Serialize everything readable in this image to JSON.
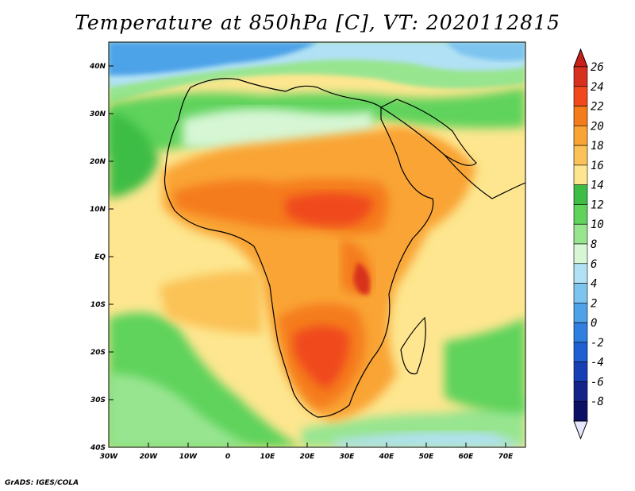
{
  "title": "Temperature at 850hPa [C], VT: 2020112815",
  "credit": "GrADS: IGES/COLA",
  "map": {
    "lon_range": [
      -30,
      75
    ],
    "lat_range": [
      -40,
      45
    ],
    "lon_ticks": [
      {
        "v": -30,
        "label": "30W"
      },
      {
        "v": -20,
        "label": "20W"
      },
      {
        "v": -10,
        "label": "10W"
      },
      {
        "v": 0,
        "label": "0"
      },
      {
        "v": 10,
        "label": "10E"
      },
      {
        "v": 20,
        "label": "20E"
      },
      {
        "v": 30,
        "label": "30E"
      },
      {
        "v": 40,
        "label": "40E"
      },
      {
        "v": 50,
        "label": "50E"
      },
      {
        "v": 60,
        "label": "60E"
      },
      {
        "v": 70,
        "label": "70E"
      }
    ],
    "lat_ticks": [
      {
        "v": 40,
        "label": "40N"
      },
      {
        "v": 30,
        "label": "30N"
      },
      {
        "v": 20,
        "label": "20N"
      },
      {
        "v": 10,
        "label": "10N"
      },
      {
        "v": 0,
        "label": "EQ"
      },
      {
        "v": -10,
        "label": "10S"
      },
      {
        "v": -20,
        "label": "20S"
      },
      {
        "v": -30,
        "label": "30S"
      },
      {
        "v": -40,
        "label": "40S"
      }
    ]
  },
  "colorbar": {
    "levels": [
      {
        "label": "26",
        "color": "#d7301f"
      },
      {
        "label": "24",
        "color": "#f04a1c"
      },
      {
        "label": "22",
        "color": "#f57c1a"
      },
      {
        "label": "20",
        "color": "#f9a434"
      },
      {
        "label": "18",
        "color": "#fbc257"
      },
      {
        "label": "16",
        "color": "#fde68f"
      },
      {
        "label": "14",
        "color": "#3dbd45"
      },
      {
        "label": "12",
        "color": "#5fd35c"
      },
      {
        "label": "10",
        "color": "#98e590"
      },
      {
        "label": "8",
        "color": "#d6f6d4"
      },
      {
        "label": "6",
        "color": "#b1e1f4"
      },
      {
        "label": "4",
        "color": "#7dc4ef"
      },
      {
        "label": "2",
        "color": "#4ea3e8"
      },
      {
        "label": "0",
        "color": "#2e7fe0"
      },
      {
        "label": "-2",
        "color": "#1f5fd3"
      },
      {
        "label": "-4",
        "color": "#173fb5"
      },
      {
        "label": "-6",
        "color": "#14238a"
      },
      {
        "label": "-8",
        "color": "#0c0f63"
      }
    ],
    "over_color": "#c81f16",
    "under_color": "#e6e6ff"
  },
  "colors": {
    "ocean_warm": "#fde68f",
    "ocean_cool": "#5fd35c",
    "cold_north": "#4ea3e8",
    "hot_core": "#f04a1c"
  }
}
